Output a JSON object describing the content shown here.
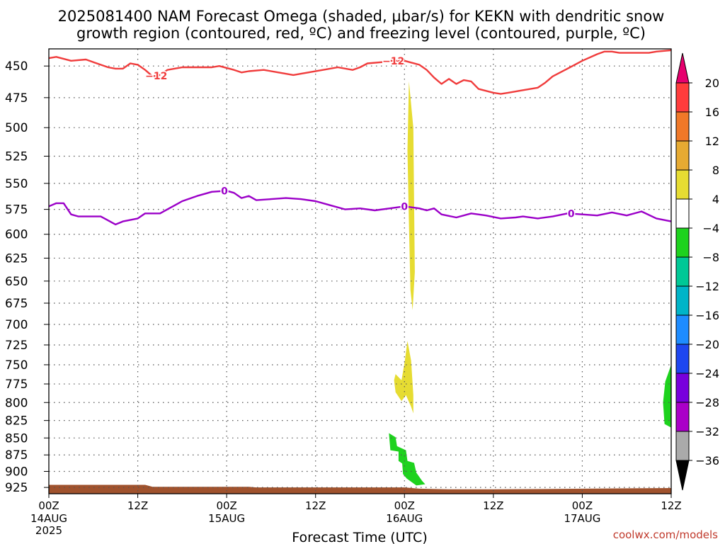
{
  "title_line1": "2025081400 NAM Forecast Omega (shaded, μbar/s) for KEKN with dendritic snow",
  "title_line2": "growth region (contoured, red, ºC) and freezing level (contoured, purple, ºC)",
  "credit": "coolwx.com/models",
  "colors": {
    "dgz": "#f03c3c",
    "freezing": "#9b00c8",
    "ground": "#a0522d",
    "rising_green": "#1ed21e",
    "sinking_yellow": "#e6dc32"
  },
  "chart_data": {
    "type": "heatmap",
    "xlabel": "Forecast Time (UTC)",
    "ylabel": "",
    "xlim": [
      0,
      84
    ],
    "ylim": [
      437,
      935
    ],
    "y_scale": "log",
    "yticks": [
      450,
      475,
      500,
      525,
      550,
      575,
      600,
      625,
      650,
      675,
      700,
      725,
      750,
      775,
      800,
      825,
      850,
      875,
      900,
      925
    ],
    "xticks": [
      {
        "hour": 0,
        "label": "00Z",
        "date": "14AUG",
        "year": "2025"
      },
      {
        "hour": 12,
        "label": "12Z",
        "date": "",
        "year": ""
      },
      {
        "hour": 24,
        "label": "00Z",
        "date": "15AUG",
        "year": ""
      },
      {
        "hour": 36,
        "label": "12Z",
        "date": "",
        "year": ""
      },
      {
        "hour": 48,
        "label": "00Z",
        "date": "16AUG",
        "year": ""
      },
      {
        "hour": 60,
        "label": "12Z",
        "date": "",
        "year": ""
      },
      {
        "hour": 72,
        "label": "00Z",
        "date": "17AUG",
        "year": ""
      },
      {
        "hour": 84,
        "label": "12Z",
        "date": "",
        "year": ""
      }
    ],
    "grid": true,
    "colorbar": {
      "levels": [
        "20",
        "16",
        "12",
        "8",
        "4",
        "−4",
        "−8",
        "−12",
        "−16",
        "−20",
        "−24",
        "−28",
        "−32",
        "−36"
      ],
      "colors": [
        "#e6006e",
        "#ff3c3c",
        "#f07828",
        "#e6aa32",
        "#e6dc32",
        "#ffffff",
        "#1ed21e",
        "#00c896",
        "#00b4c8",
        "#1e8cff",
        "#1e46f0",
        "#7800dc",
        "#aa00c8",
        "#aaaaaa",
        "#000000"
      ]
    },
    "series": [
      {
        "name": "−12",
        "color": "#f03c3c",
        "label_hours": [
          14.5,
          46.5
        ],
        "points": [
          [
            0,
            444
          ],
          [
            1,
            443
          ],
          [
            3,
            446
          ],
          [
            5,
            445
          ],
          [
            6,
            447
          ],
          [
            8,
            451
          ],
          [
            9,
            452
          ],
          [
            10,
            452
          ],
          [
            11,
            448
          ],
          [
            12,
            449
          ],
          [
            13,
            453
          ],
          [
            14,
            458
          ],
          [
            15,
            457
          ],
          [
            16,
            453
          ],
          [
            18,
            451
          ],
          [
            20,
            451
          ],
          [
            22,
            451
          ],
          [
            23,
            450
          ],
          [
            25,
            453
          ],
          [
            26,
            455
          ],
          [
            27,
            454
          ],
          [
            29,
            453
          ],
          [
            31,
            455
          ],
          [
            33,
            457
          ],
          [
            35,
            455
          ],
          [
            37,
            453
          ],
          [
            39,
            451
          ],
          [
            41,
            453
          ],
          [
            42,
            451
          ],
          [
            43,
            448
          ],
          [
            45,
            447
          ],
          [
            46,
            446
          ],
          [
            48,
            446
          ],
          [
            50,
            449
          ],
          [
            51,
            453
          ],
          [
            52,
            459
          ],
          [
            53,
            464
          ],
          [
            54,
            460
          ],
          [
            55,
            464
          ],
          [
            56,
            461
          ],
          [
            57,
            462
          ],
          [
            58,
            468
          ],
          [
            60,
            471
          ],
          [
            61,
            472
          ],
          [
            62,
            471
          ],
          [
            64,
            469
          ],
          [
            66,
            467
          ],
          [
            67,
            463
          ],
          [
            68,
            458
          ],
          [
            70,
            452
          ],
          [
            72,
            446
          ],
          [
            74,
            441
          ],
          [
            75,
            439
          ],
          [
            76,
            439
          ],
          [
            77,
            440
          ],
          [
            79,
            440
          ],
          [
            81,
            440
          ],
          [
            82,
            439
          ],
          [
            84,
            438
          ]
        ]
      },
      {
        "name": "0",
        "color": "#9b00c8",
        "label_hours": [
          23.7,
          48,
          70.5
        ],
        "points": [
          [
            0,
            572
          ],
          [
            1,
            569
          ],
          [
            2,
            569
          ],
          [
            3,
            580
          ],
          [
            4,
            582
          ],
          [
            6,
            582
          ],
          [
            7,
            582
          ],
          [
            8,
            586
          ],
          [
            9,
            590
          ],
          [
            10,
            587
          ],
          [
            12,
            584
          ],
          [
            13,
            579
          ],
          [
            15,
            579
          ],
          [
            16,
            575
          ],
          [
            18,
            567
          ],
          [
            20,
            562
          ],
          [
            22,
            558
          ],
          [
            24,
            557
          ],
          [
            25,
            559
          ],
          [
            26,
            564
          ],
          [
            27,
            562
          ],
          [
            28,
            566
          ],
          [
            30,
            565
          ],
          [
            32,
            564
          ],
          [
            34,
            565
          ],
          [
            36,
            567
          ],
          [
            38,
            571
          ],
          [
            40,
            575
          ],
          [
            42,
            574
          ],
          [
            44,
            576
          ],
          [
            46,
            574
          ],
          [
            48,
            572
          ],
          [
            50,
            574
          ],
          [
            51,
            576
          ],
          [
            52,
            574
          ],
          [
            53,
            580
          ],
          [
            55,
            583
          ],
          [
            57,
            579
          ],
          [
            59,
            581
          ],
          [
            61,
            584
          ],
          [
            63,
            583
          ],
          [
            64,
            582
          ],
          [
            66,
            584
          ],
          [
            68,
            582
          ],
          [
            70,
            579
          ],
          [
            72,
            580
          ],
          [
            74,
            581
          ],
          [
            76,
            578
          ],
          [
            78,
            581
          ],
          [
            80,
            577
          ],
          [
            82,
            584
          ],
          [
            84,
            587
          ]
        ]
      }
    ],
    "shaded_regions": [
      {
        "value_range": "4 to 8",
        "color": "#e6dc32",
        "polygon": [
          [
            48.6,
            462
          ],
          [
            49.2,
            500
          ],
          [
            49.3,
            570
          ],
          [
            49.4,
            640
          ],
          [
            49.1,
            683
          ],
          [
            48.8,
            660
          ],
          [
            48.6,
            590
          ],
          [
            48.4,
            520
          ]
        ]
      },
      {
        "value_range": "4 to 8",
        "color": "#e6dc32",
        "polygon": [
          [
            48.4,
            720
          ],
          [
            48.9,
            745
          ],
          [
            49.2,
            790
          ],
          [
            49.2,
            815
          ],
          [
            48.9,
            806
          ],
          [
            48.2,
            790
          ],
          [
            47.6,
            798
          ],
          [
            46.8,
            786
          ],
          [
            46.6,
            770
          ],
          [
            46.8,
            762
          ],
          [
            47.6,
            770
          ],
          [
            48.0,
            748
          ]
        ]
      },
      {
        "value_range": "-8 to -4",
        "color": "#1ed21e",
        "polygon": [
          [
            45.9,
            843
          ],
          [
            46.8,
            849
          ],
          [
            47.0,
            862
          ],
          [
            48.2,
            868
          ],
          [
            48.4,
            884
          ],
          [
            49.3,
            887
          ],
          [
            49.6,
            902
          ],
          [
            50.4,
            915
          ],
          [
            50.8,
            920
          ],
          [
            49.6,
            922
          ],
          [
            48.3,
            911
          ],
          [
            47.8,
            904
          ],
          [
            47.7,
            888
          ],
          [
            47.2,
            884
          ],
          [
            47.2,
            870
          ],
          [
            46.1,
            868
          ]
        ]
      },
      {
        "value_range": "-8 to -4",
        "color": "#1ed21e",
        "polygon": [
          [
            84,
            750
          ],
          [
            84,
            835
          ],
          [
            83.1,
            830
          ],
          [
            82.9,
            800
          ],
          [
            83.2,
            772
          ]
        ]
      }
    ],
    "ground": {
      "color": "#a0522d",
      "top_pressure": [
        [
          0,
          921
        ],
        [
          13,
          921
        ],
        [
          14,
          924
        ],
        [
          27,
          924
        ],
        [
          28,
          925
        ],
        [
          48,
          925
        ],
        [
          50,
          927
        ],
        [
          54,
          928
        ],
        [
          60,
          928
        ],
        [
          84,
          926
        ]
      ]
    }
  }
}
